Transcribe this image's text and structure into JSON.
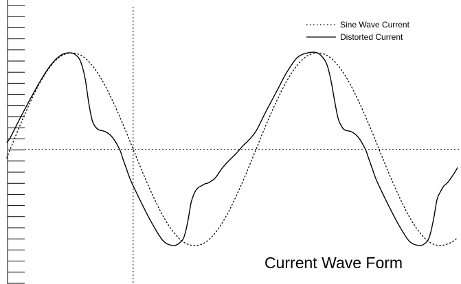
{
  "chart_data": {
    "type": "line",
    "title": "",
    "annotation": "Current Wave Form",
    "xlabel": "",
    "ylabel": "",
    "x_unit": "degrees",
    "xlim": [
      -15,
      660
    ],
    "ylim": [
      -1.4,
      1.55
    ],
    "crosshair": {
      "x": 180,
      "y": 0
    },
    "grid": false,
    "legend_position": "top-right",
    "colors": {
      "line": "#000000",
      "background": "#ffffff"
    },
    "series": [
      {
        "name": "Sine Wave Current",
        "style": "dotted",
        "x": [
          -5,
          0,
          15,
          30,
          45,
          60,
          75,
          90,
          105,
          120,
          135,
          150,
          165,
          180,
          195,
          210,
          225,
          240,
          255,
          270,
          285,
          300,
          315,
          330,
          345,
          360,
          375,
          390,
          405,
          420,
          435,
          450,
          465,
          480,
          495,
          510,
          525,
          540,
          555,
          570,
          585,
          600,
          615,
          630,
          645,
          655
        ],
        "y": [
          -0.09,
          0.0,
          0.26,
          0.5,
          0.71,
          0.87,
          0.97,
          1.0,
          0.97,
          0.87,
          0.71,
          0.5,
          0.26,
          0.0,
          -0.26,
          -0.5,
          -0.71,
          -0.87,
          -0.97,
          -1.0,
          -0.97,
          -0.87,
          -0.71,
          -0.5,
          -0.26,
          0.0,
          0.26,
          0.5,
          0.71,
          0.87,
          0.97,
          1.0,
          0.97,
          0.87,
          0.71,
          0.5,
          0.26,
          0.0,
          -0.26,
          -0.5,
          -0.71,
          -0.87,
          -0.97,
          -1.0,
          -0.97,
          -0.92
        ]
      },
      {
        "name": "Distorted Current",
        "style": "solid",
        "x": [
          -5,
          0,
          15,
          30,
          45,
          60,
          75,
          90,
          100,
          105,
          110,
          115,
          120,
          125,
          130,
          140,
          150,
          160,
          165,
          170,
          175,
          180,
          195,
          210,
          225,
          240,
          250,
          255,
          260,
          265,
          270,
          275,
          280,
          285,
          290,
          300,
          310,
          320,
          330,
          340,
          350,
          360,
          375,
          390,
          405,
          420,
          435,
          450,
          460,
          465,
          470,
          475,
          480,
          485,
          490,
          500,
          510,
          520,
          525,
          530,
          535,
          540,
          555,
          570,
          585,
          600,
          610,
          615,
          620,
          625,
          630,
          635,
          640,
          650,
          655
        ],
        "y": [
          0.07,
          0.12,
          0.33,
          0.53,
          0.72,
          0.88,
          0.98,
          1.0,
          0.95,
          0.87,
          0.72,
          0.48,
          0.3,
          0.23,
          0.2,
          0.18,
          0.12,
          0.0,
          -0.1,
          -0.2,
          -0.3,
          -0.38,
          -0.6,
          -0.8,
          -0.96,
          -1.0,
          -0.96,
          -0.9,
          -0.75,
          -0.55,
          -0.45,
          -0.4,
          -0.38,
          -0.36,
          -0.35,
          -0.3,
          -0.2,
          -0.12,
          -0.05,
          0.03,
          0.1,
          0.19,
          0.4,
          0.6,
          0.8,
          0.95,
          1.0,
          1.0,
          0.93,
          0.85,
          0.7,
          0.5,
          0.32,
          0.24,
          0.2,
          0.18,
          0.12,
          0.0,
          -0.1,
          -0.2,
          -0.3,
          -0.38,
          -0.6,
          -0.8,
          -0.96,
          -1.0,
          -0.96,
          -0.88,
          -0.72,
          -0.52,
          -0.44,
          -0.38,
          -0.35,
          -0.25,
          -0.19
        ]
      }
    ]
  }
}
